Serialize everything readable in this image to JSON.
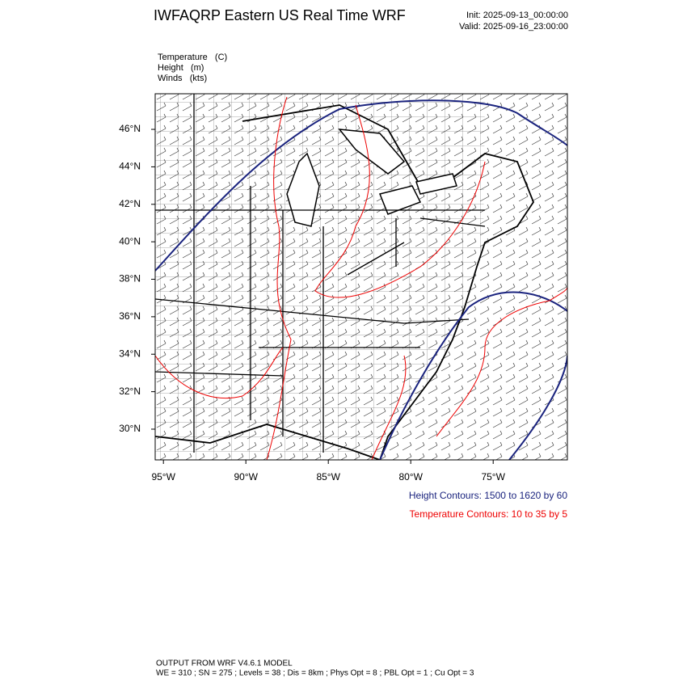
{
  "header": {
    "title": "IWFAQRP Eastern US Real Time WRF",
    "init": "Init: 2025-09-13_00:00:00",
    "valid": "Valid: 2025-09-16_23:00:00"
  },
  "field_labels": [
    "Temperature   (C)",
    "Height   (m)",
    "Winds   (kts)"
  ],
  "map": {
    "xlim": [
      -95.5,
      -70.5
    ],
    "ylim": [
      28.36,
      47.9
    ],
    "xticks": [
      {
        "value": -95,
        "label": "95°W"
      },
      {
        "value": -90,
        "label": "90°W"
      },
      {
        "value": -85,
        "label": "85°W"
      },
      {
        "value": -80,
        "label": "80°W"
      },
      {
        "value": -75,
        "label": "75°W"
      }
    ],
    "yticks": [
      {
        "value": 30,
        "label": "30°N"
      },
      {
        "value": 32,
        "label": "32°N"
      },
      {
        "value": 34,
        "label": "34°N"
      },
      {
        "value": 36,
        "label": "36°N"
      },
      {
        "value": 38,
        "label": "38°N"
      },
      {
        "value": 40,
        "label": "40°N"
      },
      {
        "value": 42,
        "label": "42°N"
      },
      {
        "value": 44,
        "label": "44°N"
      },
      {
        "value": 46,
        "label": "46°N"
      }
    ]
  },
  "legend": {
    "height": "Height Contours: 1500 to 1620 by 60",
    "temperature": "Temperature Contours: 10 to 35 by 5"
  },
  "footer": {
    "line1": "OUTPUT FROM WRF V4.6.1 MODEL",
    "line2": "WE = 310 ; SN = 275 ; Levels = 38 ; Dis = 8km ; Phys Opt = 8 ; PBL Opt = 1 ; Cu Opt = 3"
  }
}
